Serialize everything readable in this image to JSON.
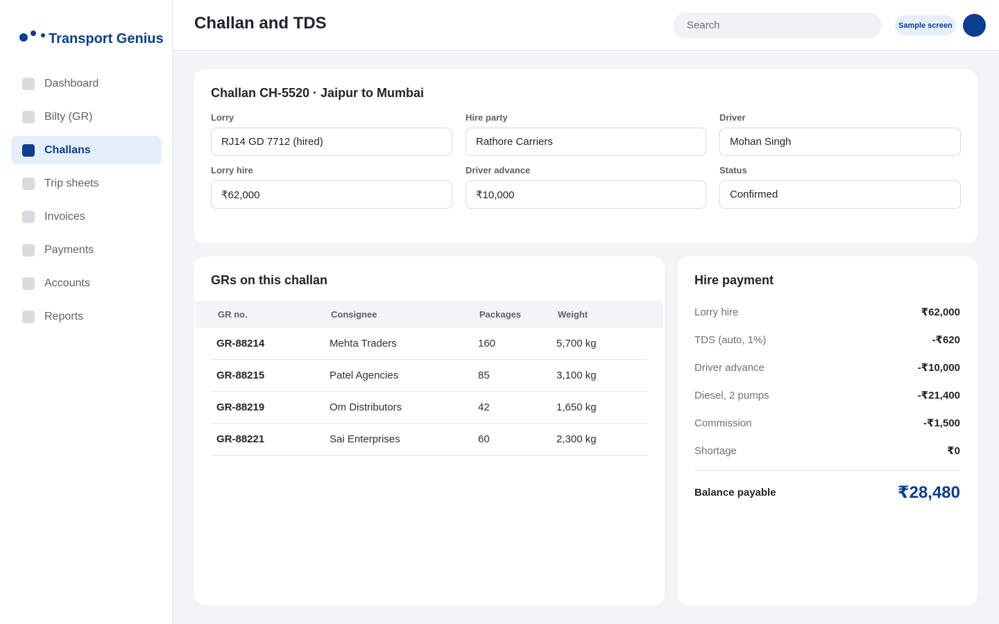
{
  "brand": {
    "name": "Transport Genius"
  },
  "sidebar": {
    "items": [
      {
        "label": "Dashboard",
        "active": false
      },
      {
        "label": "Bilty (GR)",
        "active": false
      },
      {
        "label": "Challans",
        "active": true
      },
      {
        "label": "Trip sheets",
        "active": false
      },
      {
        "label": "Invoices",
        "active": false
      },
      {
        "label": "Payments",
        "active": false
      },
      {
        "label": "Accounts",
        "active": false
      },
      {
        "label": "Reports",
        "active": false
      }
    ]
  },
  "header": {
    "title": "Challan and TDS",
    "search_placeholder": "Search",
    "badge": "Sample screen"
  },
  "challan": {
    "title": "Challan CH-5520 · Jaipur to Mumbai",
    "fields": {
      "lorry": {
        "label": "Lorry",
        "value": "RJ14 GD 7712 (hired)"
      },
      "hire_party": {
        "label": "Hire party",
        "value": "Rathore Carriers"
      },
      "driver": {
        "label": "Driver",
        "value": "Mohan Singh"
      },
      "lorry_hire": {
        "label": "Lorry hire",
        "value": "₹62,000"
      },
      "driver_advance": {
        "label": "Driver advance",
        "value": "₹10,000"
      },
      "status": {
        "label": "Status",
        "value": "Confirmed"
      }
    }
  },
  "grs": {
    "title": "GRs on this challan",
    "columns": [
      "GR no.",
      "Consignee",
      "Packages",
      "Weight"
    ],
    "rows": [
      [
        "GR-88214",
        "Mehta Traders",
        "160",
        "5,700 kg"
      ],
      [
        "GR-88215",
        "Patel Agencies",
        "85",
        "3,100 kg"
      ],
      [
        "GR-88219",
        "Om Distributors",
        "42",
        "1,650 kg"
      ],
      [
        "GR-88221",
        "Sai Enterprises",
        "60",
        "2,300 kg"
      ]
    ]
  },
  "payment": {
    "title": "Hire payment",
    "lines": [
      {
        "label": "Lorry hire",
        "value": "₹62,000"
      },
      {
        "label": "TDS (auto, 1%)",
        "value": "-₹620"
      },
      {
        "label": "Driver advance",
        "value": "-₹10,000"
      },
      {
        "label": "Diesel, 2 pumps",
        "value": "-₹21,400"
      },
      {
        "label": "Commission",
        "value": "-₹1,500"
      },
      {
        "label": "Shortage",
        "value": "₹0"
      }
    ],
    "total": {
      "label": "Balance payable",
      "value": "₹28,480"
    }
  },
  "colors": {
    "accent": "#0b3d91",
    "accent_soft": "#e5effc",
    "background": "#f3f4f6"
  },
  "icons": {
    "nav_item": "square-icon",
    "brand": "dots-logo-icon"
  }
}
